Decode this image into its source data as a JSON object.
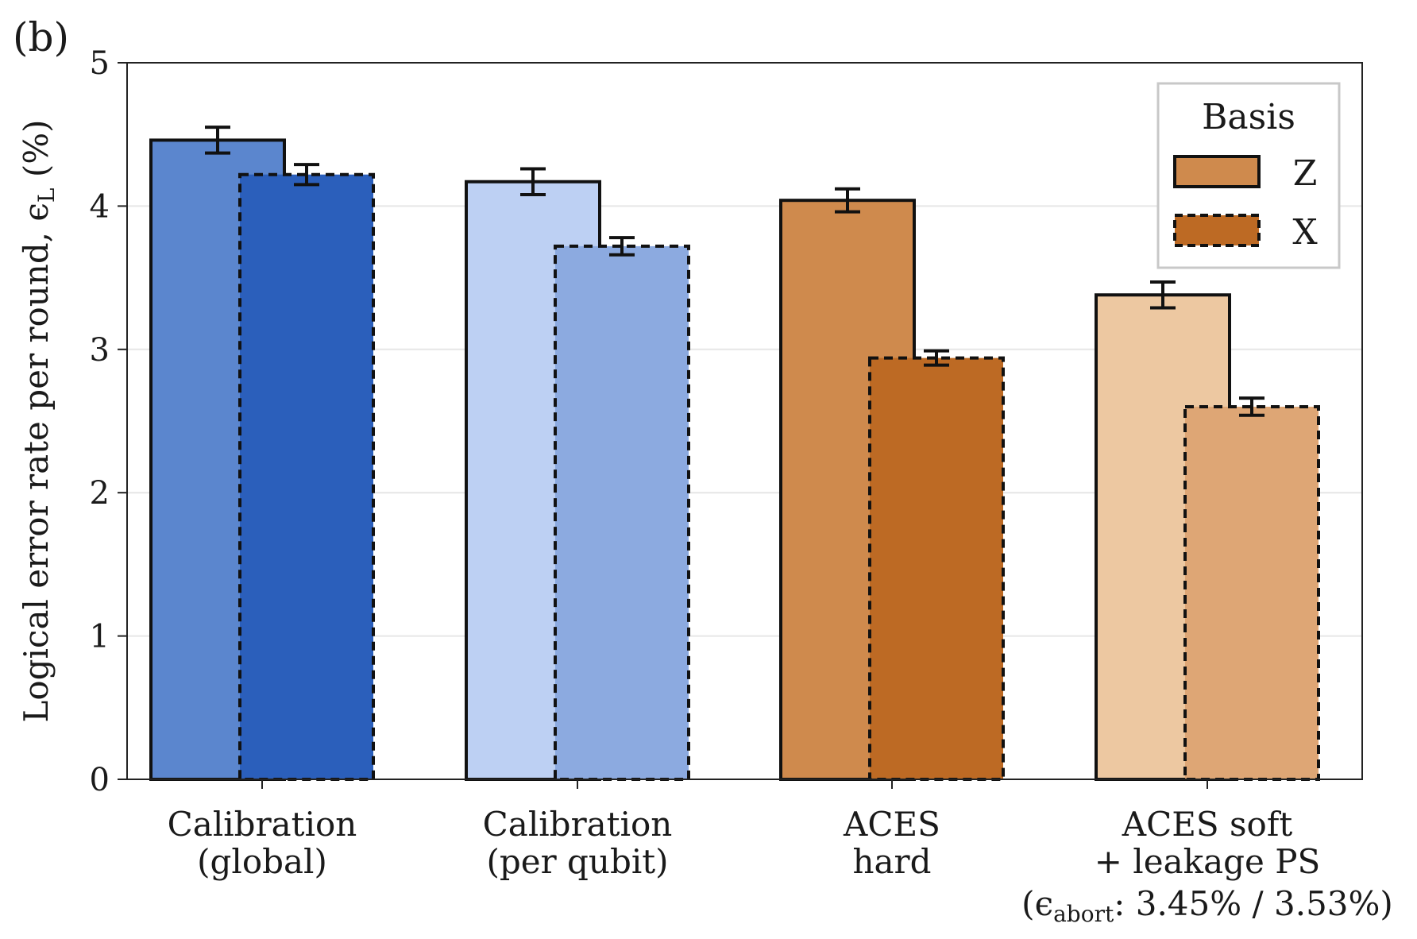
{
  "panel_label": "(b)",
  "chart_data": {
    "type": "bar",
    "ylabel": "Logical error rate per round, ϵL (%)",
    "ylabel_main": "Logical error rate per round, ϵ",
    "ylabel_sub": "L",
    "ylabel_unit": " (%)",
    "ylim": [
      0,
      5
    ],
    "yticks": [
      "0",
      "1",
      "2",
      "3",
      "4",
      "5"
    ],
    "grid": "horizontal",
    "categories": [
      [
        "Calibration",
        "(global)"
      ],
      [
        "Calibration",
        "(per qubit)"
      ],
      [
        "ACES",
        "hard"
      ],
      [
        "ACES soft",
        "+ leakage PS"
      ]
    ],
    "category_note": {
      "open": "(",
      "symbol": "ϵ",
      "sub": "abort",
      "text": ": 3.45% / 3.53%)"
    },
    "legend": {
      "title": "Basis",
      "placement": "top-right",
      "entries": [
        "Z",
        "X"
      ]
    },
    "series": [
      {
        "name": "Z",
        "line_style": "solid",
        "values": [
          4.46,
          4.17,
          4.04,
          3.38
        ],
        "errors": [
          0.09,
          0.09,
          0.08,
          0.09
        ],
        "colors": [
          "#5b86ce",
          "#bdd0f3",
          "#cf8a4d",
          "#edc8a1"
        ]
      },
      {
        "name": "X",
        "line_style": "dashed",
        "values": [
          4.22,
          3.72,
          2.94,
          2.6
        ],
        "errors": [
          0.07,
          0.06,
          0.05,
          0.06
        ],
        "colors": [
          "#2b5fbb",
          "#8caae0",
          "#bd6a24",
          "#dea675"
        ]
      }
    ],
    "legend_colors": {
      "Z": "#cf8a4d",
      "X": "#bd6a24"
    }
  }
}
